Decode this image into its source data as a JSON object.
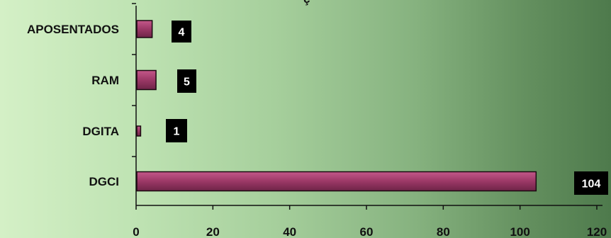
{
  "chart_data": {
    "type": "bar",
    "orientation": "horizontal",
    "categories": [
      "APOSENTADOS",
      "RAM",
      "DGITA",
      "DGCI"
    ],
    "values": [
      4,
      5,
      1,
      104
    ],
    "data_labels": [
      "4",
      "5",
      "1",
      "104"
    ],
    "xlim": [
      0,
      120
    ],
    "x_ticks": [
      0,
      20,
      40,
      60,
      80,
      100,
      120
    ],
    "x_tick_labels": [
      "0",
      "20",
      "40",
      "60",
      "80",
      "100",
      "120"
    ],
    "grid": false,
    "legend": "none",
    "colors": {
      "bar_fill": "#9b3866",
      "bar_edge": "#1a0a10",
      "label_box": "#000000",
      "label_text": "#ffffff"
    }
  }
}
